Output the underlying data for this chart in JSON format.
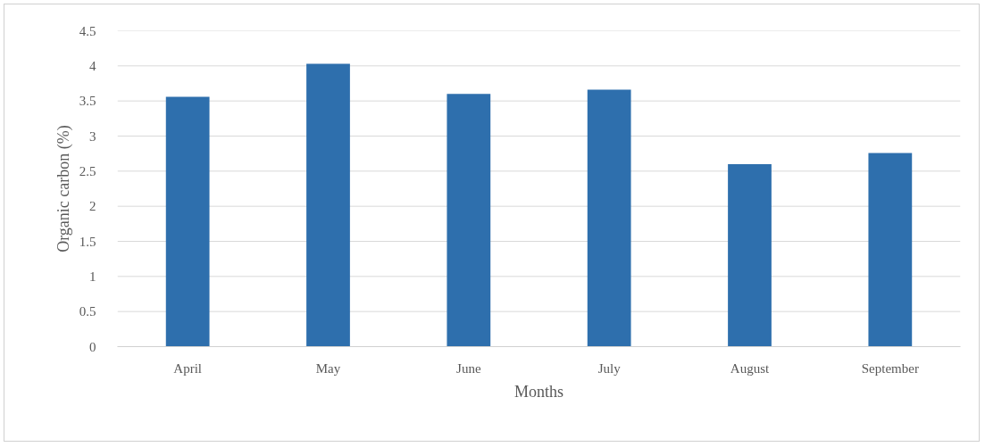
{
  "chart_data": {
    "type": "bar",
    "xlabel": "Months",
    "ylabel": "Organic carbon (%)",
    "categories": [
      "April",
      "May",
      "June",
      "July",
      "August",
      "September"
    ],
    "values": [
      3.56,
      4.03,
      3.6,
      3.66,
      2.6,
      2.76
    ],
    "color": "#2e6fad",
    "ylim": [
      0,
      4.5
    ],
    "yticks": [
      0,
      0.5,
      1,
      1.5,
      2,
      2.5,
      3,
      3.5,
      4,
      4.5
    ],
    "grid": "y"
  }
}
